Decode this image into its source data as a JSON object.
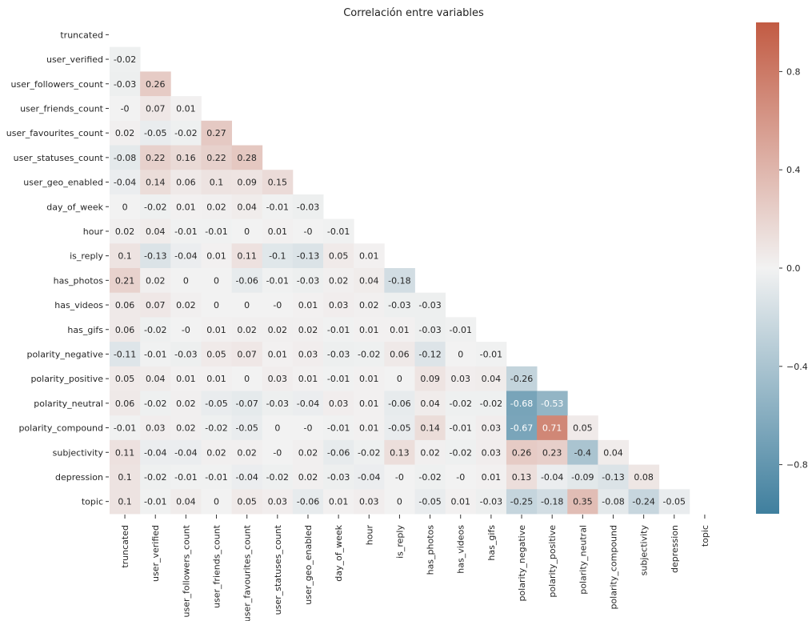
{
  "chart_data": {
    "type": "heatmap",
    "title": "Correlación entre variables",
    "variables": [
      "truncated",
      "user_verified",
      "user_followers_count",
      "user_friends_count",
      "user_favourites_count",
      "user_statuses_count",
      "user_geo_enabled",
      "day_of_week",
      "hour",
      "is_reply",
      "has_photos",
      "has_videos",
      "has_gifs",
      "polarity_negative",
      "polarity_positive",
      "polarity_neutral",
      "polarity_compound",
      "subjectivity",
      "depression",
      "topic"
    ],
    "lower_triangle": [
      [],
      [
        "-0.02"
      ],
      [
        "-0.03",
        "0.26"
      ],
      [
        "-0",
        "0.07",
        "0.01"
      ],
      [
        "0.02",
        "-0.05",
        "-0.02",
        "0.27"
      ],
      [
        "-0.08",
        "0.22",
        "0.16",
        "0.22",
        "0.28"
      ],
      [
        "-0.04",
        "0.14",
        "0.06",
        "0.1",
        "0.09",
        "0.15"
      ],
      [
        "0",
        "-0.02",
        "0.01",
        "0.02",
        "0.04",
        "-0.01",
        "-0.03"
      ],
      [
        "0.02",
        "0.04",
        "-0.01",
        "-0.01",
        "0",
        "0.01",
        "-0",
        "-0.01"
      ],
      [
        "0.1",
        "-0.13",
        "-0.04",
        "0.01",
        "0.11",
        "-0.1",
        "-0.13",
        "0.05",
        "0.01"
      ],
      [
        "0.21",
        "0.02",
        "0",
        "0",
        "-0.06",
        "-0.01",
        "-0.03",
        "0.02",
        "0.04",
        "-0.18"
      ],
      [
        "0.06",
        "0.07",
        "0.02",
        "0",
        "0",
        "-0",
        "0.01",
        "0.03",
        "0.02",
        "-0.03",
        "-0.03"
      ],
      [
        "0.06",
        "-0.02",
        "-0",
        "0.01",
        "0.02",
        "0.02",
        "0.02",
        "-0.01",
        "0.01",
        "0.01",
        "-0.03",
        "-0.01"
      ],
      [
        "-0.11",
        "-0.01",
        "-0.03",
        "0.05",
        "0.07",
        "0.01",
        "0.03",
        "-0.03",
        "-0.02",
        "0.06",
        "-0.12",
        "0",
        "-0.01"
      ],
      [
        "0.05",
        "0.04",
        "0.01",
        "0.01",
        "0",
        "0.03",
        "0.01",
        "-0.01",
        "0.01",
        "0",
        "0.09",
        "0.03",
        "0.04",
        "-0.26"
      ],
      [
        "0.06",
        "-0.02",
        "0.02",
        "-0.05",
        "-0.07",
        "-0.03",
        "-0.04",
        "0.03",
        "0.01",
        "-0.06",
        "0.04",
        "-0.02",
        "-0.02",
        "-0.68",
        "-0.53"
      ],
      [
        "-0.01",
        "0.03",
        "0.02",
        "-0.02",
        "-0.05",
        "0",
        "-0",
        "-0.01",
        "0.01",
        "-0.05",
        "0.14",
        "-0.01",
        "0.03",
        "-0.67",
        "0.71",
        "0.05"
      ],
      [
        "0.11",
        "-0.04",
        "-0.04",
        "0.02",
        "0.02",
        "-0",
        "0.02",
        "-0.06",
        "-0.02",
        "0.13",
        "0.02",
        "-0.02",
        "0.03",
        "0.26",
        "0.23",
        "-0.4",
        "0.04"
      ],
      [
        "0.1",
        "-0.02",
        "-0.01",
        "-0.01",
        "-0.04",
        "-0.02",
        "0.02",
        "-0.03",
        "-0.04",
        "-0",
        "-0.02",
        "-0",
        "0.01",
        "0.13",
        "-0.04",
        "-0.09",
        "-0.13",
        "0.08"
      ],
      [
        "0.1",
        "-0.01",
        "0.04",
        "0",
        "0.05",
        "0.03",
        "-0.06",
        "0.01",
        "0.03",
        "0",
        "-0.05",
        "0.01",
        "-0.03",
        "-0.25",
        "-0.18",
        "0.35",
        "-0.08",
        "-0.24",
        "-0.05"
      ]
    ],
    "colorbar": {
      "range": [
        -1,
        1
      ],
      "ticks": [
        "0.8",
        "0.4",
        "0.0",
        "−0.4",
        "−0.8"
      ],
      "tick_values": [
        0.8,
        0.4,
        0.0,
        -0.4,
        -0.8
      ],
      "colors": {
        "negative": "#3f7f9e",
        "center": "#f2f2f2",
        "positive": "#c25b43"
      }
    }
  }
}
